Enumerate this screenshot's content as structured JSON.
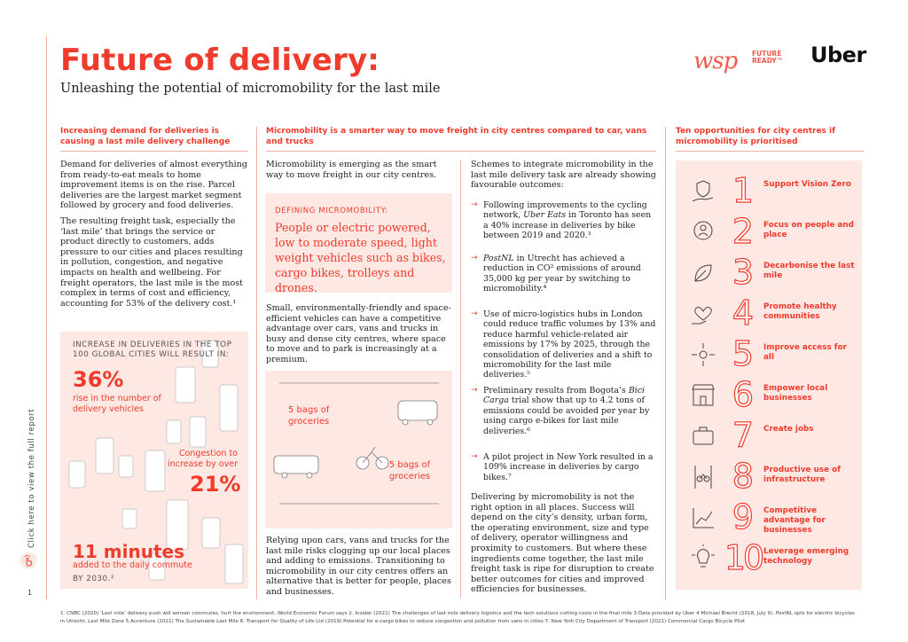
{
  "header": {
    "title": "Future of delivery:",
    "subtitle": "Unleashing the potential of micromobility for the last mile"
  },
  "logos": {
    "wsp": "wsp",
    "future_ready": "FUTURE READY™",
    "uber": "Uber"
  },
  "sidebar": {
    "link_text": "Click here to view the full report",
    "page_number": "1"
  },
  "col1": {
    "heading": "Increasing demand for deliveries is causing a last mile delivery challenge",
    "para1": "Demand for deliveries of almost everything from ready-to-eat meals to home improvement items is on the rise. Parcel deliveries are the largest market segment followed by grocery and food deliveries.",
    "para2": "The resulting freight task, especially the ‘last mile’ that brings the service or product directly to customers, adds pressure to our cities and places resulting in pollution, congestion, and negative impacts on health and wellbeing. For freight operators, the last mile is the most complex in terms of cost and efficiency, accounting for 53% of the delivery cost.¹",
    "stats": {
      "caption": "INCREASE IN DELIVERIES IN THE TOP 100 GLOBAL CITIES WILL RESULT IN:",
      "stat1_value": "36%",
      "stat1_label": "rise in the number of delivery vehicles",
      "stat2_label": "Congestion to increase by over",
      "stat2_value": "21%",
      "stat3_value": "11 minutes",
      "stat3_label": "added to the daily commute",
      "stat3_note": "BY 2030.²"
    }
  },
  "col2": {
    "heading": "Micromobility is a smarter way to move freight in city centres compared to car, vans and trucks",
    "intro": "Micromobility is emerging as the smart way to move freight in our city centres.",
    "defining_label": "DEFINING MICROMOBILITY:",
    "defining_text": "People or electric powered, low to moderate speed, light weight vehicles such as bikes, cargo bikes, trolleys and drones.",
    "para2": "Small, environmentally-friendly and space-efficient vehicles can have a competitive advantage over cars, vans and trucks in busy and dense city centres, where space to move and to park is increasingly at a premium.",
    "illus_label1": "5 bags of groceries",
    "illus_label2": "5 bags of groceries",
    "para3": "Relying upon cars, vans and trucks for the last mile risks clogging up our local places and adding to emissions. Transitioning to micromobility in our city centres offers an alternative that is better for people, places and businesses."
  },
  "col3": {
    "intro": "Schemes to integrate micromobility in the last mile delivery task are already showing favourable outcomes:",
    "bullets": [
      {
        "lead": "Following improvements to the cycling network, ",
        "em": "Uber Eats",
        "rest": " in Toronto has seen a 40% increase in deliveries by bike between 2019 and 2020.³"
      },
      {
        "lead": "",
        "em": "PostNL",
        "rest": " in Utrecht has achieved a reduction in CO² emissions of around 35,000 kg per year by switching to micromobility.⁴"
      },
      {
        "lead": "Use of micro-logistics hubs in London could reduce traffic volumes by 13% and reduce harmful vehicle-related air emissions by 17% by 2025, through the consolidation of deliveries and a shift to micromobility for the last mile deliveries.⁵",
        "em": "",
        "rest": ""
      },
      {
        "lead": "Preliminary results from Bogota’s ",
        "em": "Bici Carga",
        "rest": " trial show that up to 4.2 tons of emissions could be avoided per year by using cargo e-bikes for last mile deliveries.⁶"
      },
      {
        "lead": "A pilot project in New York resulted in a 109% increase in deliveries by cargo bikes.⁷",
        "em": "",
        "rest": ""
      }
    ],
    "closing": "Delivering by micromobility is not the right option in all places. Success will depend on the city’s density, urban form, the operating environment, size and type of delivery, operator willingness and proximity to customers. But where these ingredients come together, the last mile freight task is ripe for disruption to create better outcomes for cities and improved efficiencies for businesses."
  },
  "col4": {
    "heading": "Ten opportunities for city centres if micromobility is prioritised",
    "items": [
      {
        "num": "1",
        "label": "Support Vision Zero",
        "icon": "hand-shield-icon"
      },
      {
        "num": "2",
        "label": "Focus on people and place",
        "icon": "location-person-icon"
      },
      {
        "num": "3",
        "label": "Decarbonise the last mile",
        "icon": "leaf-icon"
      },
      {
        "num": "4",
        "label": "Promote healthy communities",
        "icon": "heart-hand-icon"
      },
      {
        "num": "5",
        "label": "Improve access for all",
        "icon": "access-arrows-icon"
      },
      {
        "num": "6",
        "label": "Empower local businesses",
        "icon": "shopfront-icon"
      },
      {
        "num": "7",
        "label": "Create jobs",
        "icon": "briefcase-icon"
      },
      {
        "num": "8",
        "label": "Productive use of infrastructure",
        "icon": "bike-lane-icon"
      },
      {
        "num": "9",
        "label": "Competitive advantage for businesses",
        "icon": "growth-chart-icon"
      },
      {
        "num": "10",
        "label": "Leverage emerging technology",
        "icon": "lightbulb-icon"
      }
    ]
  },
  "footnotes": "1. CNBC (2020) ‘Last mile’ delivery push will worsen commutes, hurt the environment, World Economic Forum says 2. Insider (2021) The challenges of last mile delivery logistics and the tech solutions cutting costs in the final mile 3 Data provided by Uber 4 Michael Brecht (2018, July 9). PostNL opts for electric bicycles in Utrecht, Last Mile Zone 5 Accenture (2021) The Sustainable Last Mile 6. Transport for Quality of Life Ltd (2019) Potential for e-cargo bikes to reduce congestion and pollution from vans in cities 7. New York City Department of Transport (2021) Commercial Cargo Bicycle Pilot"
}
